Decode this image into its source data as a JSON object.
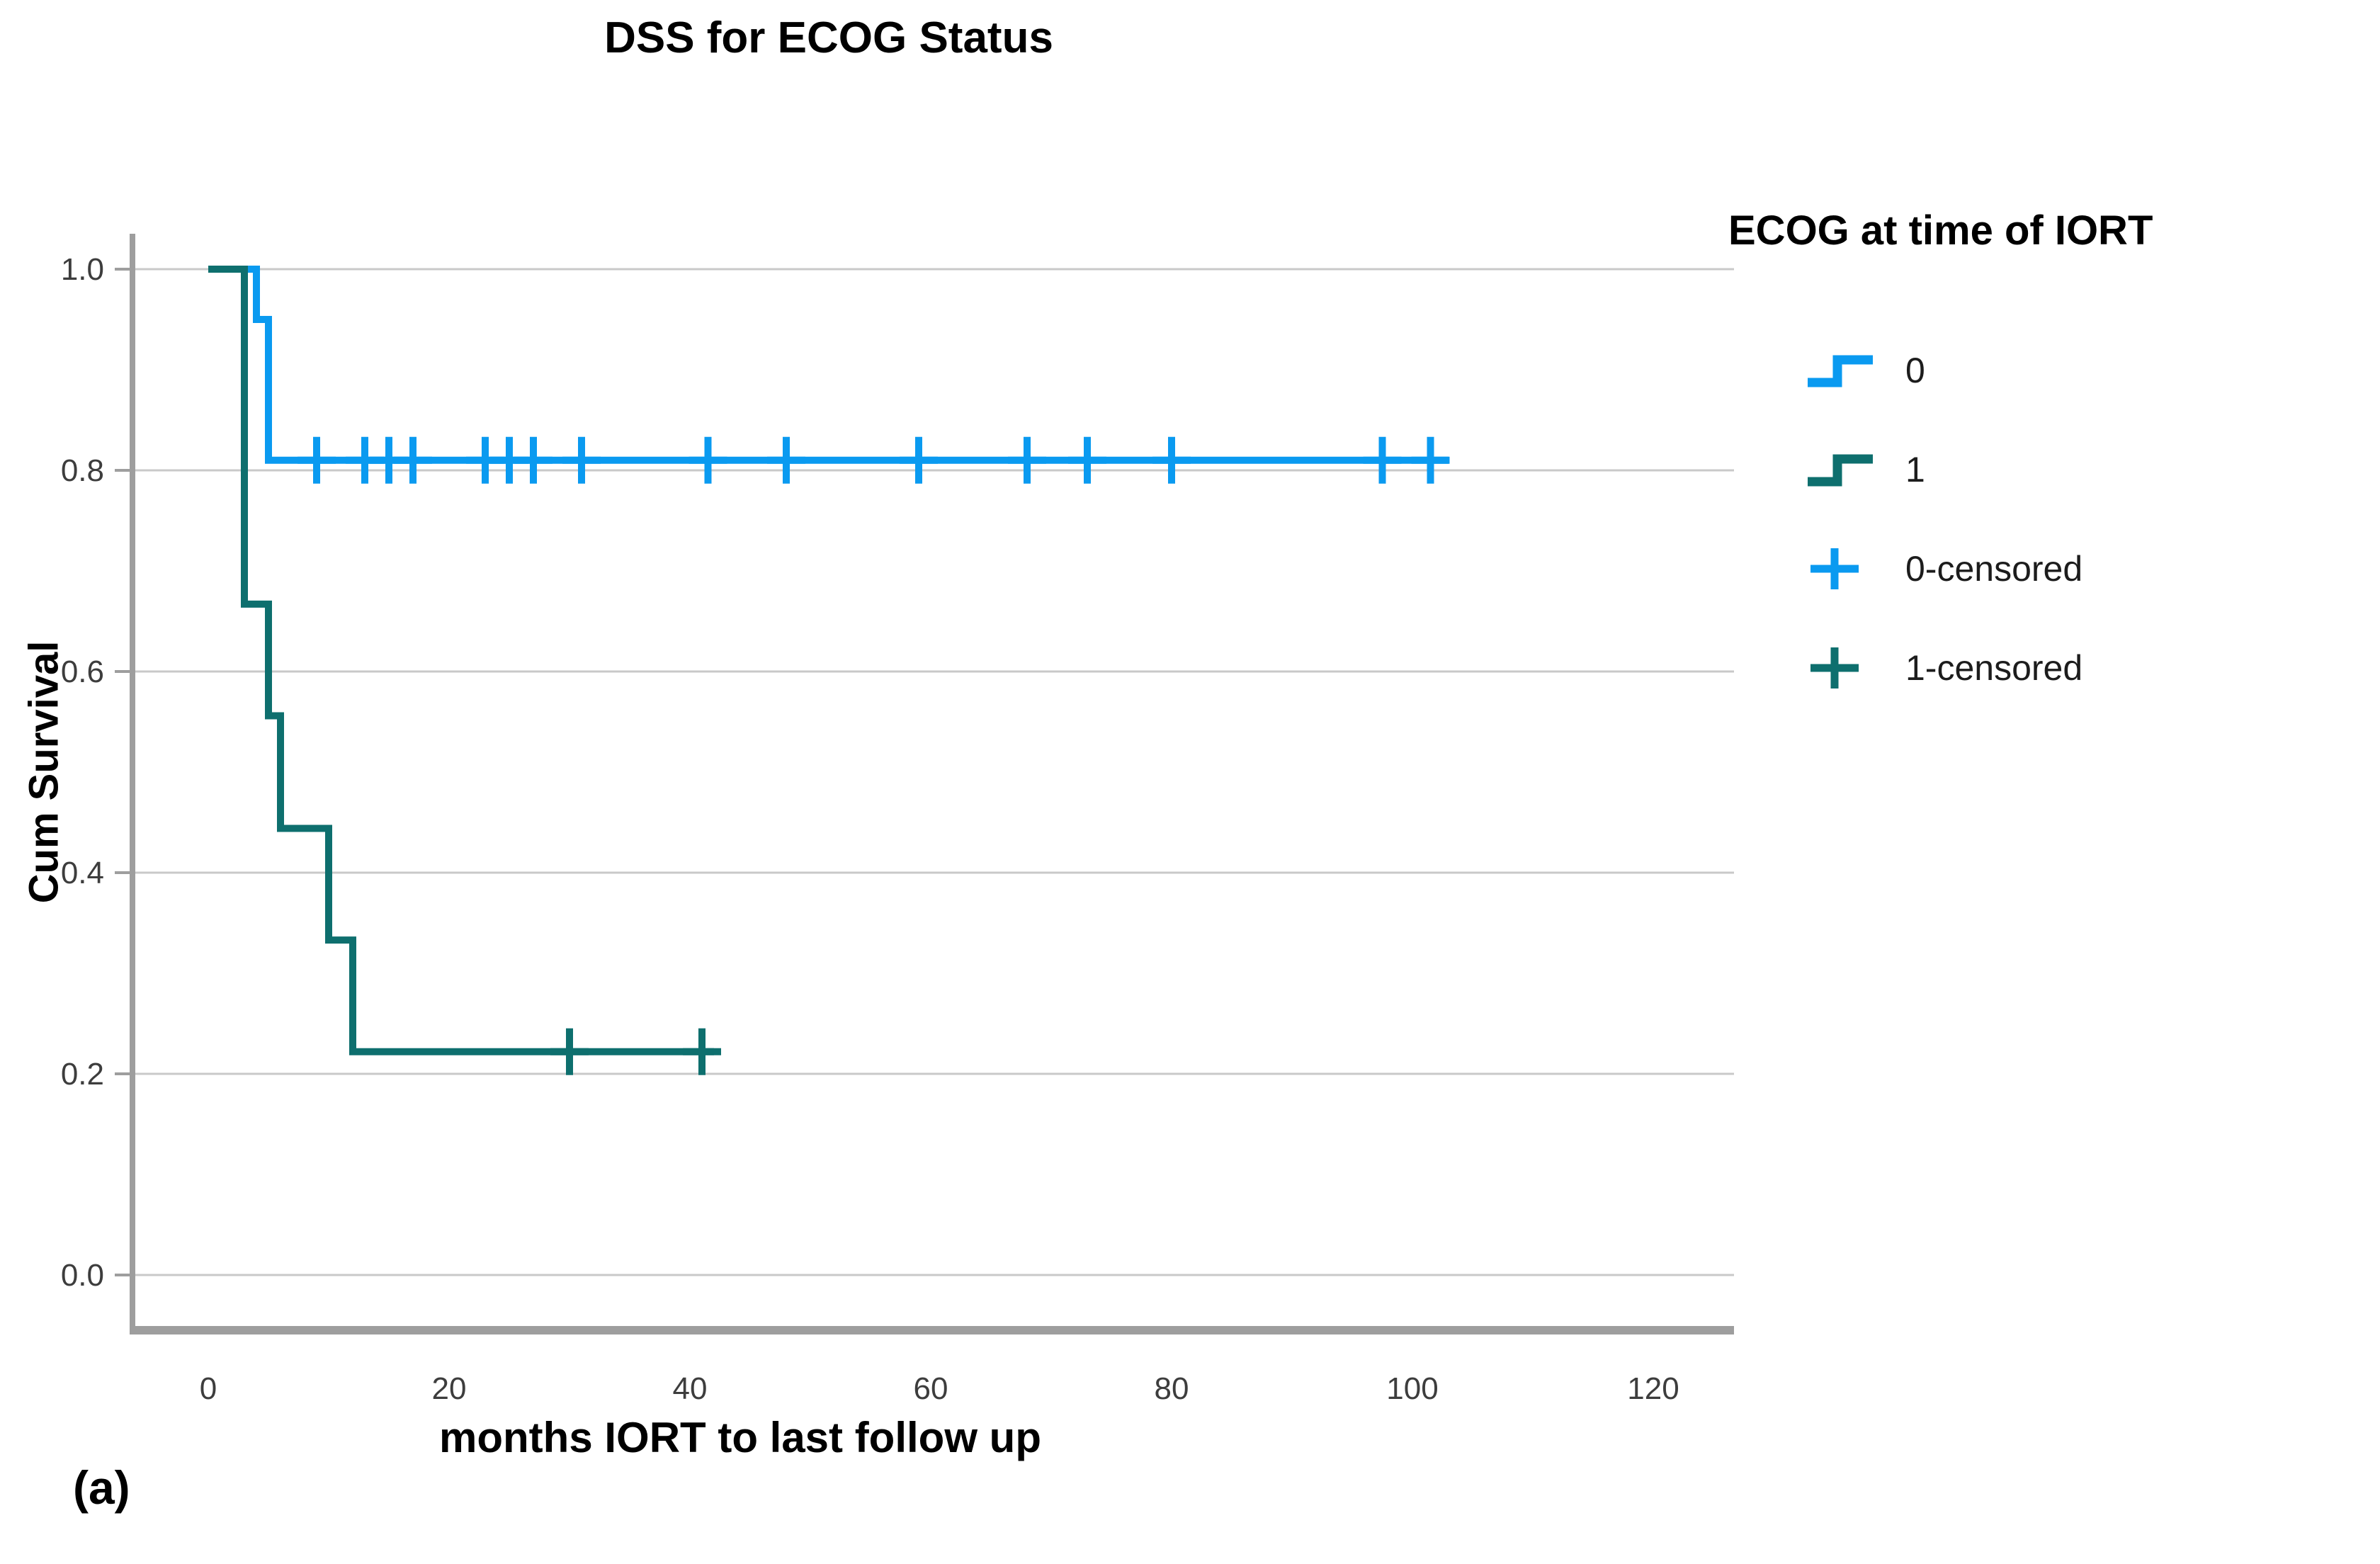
{
  "figure_label": "(a)",
  "chart_data": {
    "type": "line",
    "subtype": "kaplan-meier-step",
    "title": "DSS for ECOG Status",
    "xlabel": "months IORT to last follow up",
    "ylabel": "Cum Survival",
    "xlim": [
      0,
      126
    ],
    "ylim": [
      0.0,
      1.0
    ],
    "x_ticks": [
      0,
      20,
      40,
      60,
      80,
      100,
      120
    ],
    "x_tick_labels": [
      "0",
      "20",
      "40",
      "60",
      "80",
      "100",
      "120"
    ],
    "y_ticks": [
      0.0,
      0.2,
      0.4,
      0.6,
      0.8,
      1.0
    ],
    "y_tick_labels": [
      "0.0",
      "0.2",
      "0.4",
      "0.6",
      "0.8",
      "1.0"
    ],
    "grid": "horizontal",
    "legend_position": "right",
    "colors": {
      "ecog0_blue": "#0a9af0",
      "ecog1_teal": "#0e6f6e",
      "gridline": "#c9c9c9",
      "axis": "#9e9e9e",
      "tick_text": "#3d3d3d"
    },
    "series": [
      {
        "name": "0",
        "color": "#0a9af0",
        "steps": [
          [
            0,
            1.0
          ],
          [
            4,
            1.0
          ],
          [
            4,
            0.95
          ],
          [
            5,
            0.95
          ],
          [
            5,
            0.81
          ],
          [
            103,
            0.81
          ]
        ],
        "censored": [
          [
            9,
            0.81
          ],
          [
            13,
            0.81
          ],
          [
            15,
            0.81
          ],
          [
            17,
            0.81
          ],
          [
            23,
            0.81
          ],
          [
            25,
            0.81
          ],
          [
            27,
            0.81
          ],
          [
            31,
            0.81
          ],
          [
            41.5,
            0.81
          ],
          [
            48,
            0.81
          ],
          [
            59,
            0.81
          ],
          [
            68,
            0.81
          ],
          [
            73,
            0.81
          ],
          [
            80,
            0.81
          ],
          [
            97.5,
            0.81
          ],
          [
            101.5,
            0.81
          ]
        ]
      },
      {
        "name": "1",
        "color": "#0e6f6e",
        "steps": [
          [
            0,
            1.0
          ],
          [
            3,
            1.0
          ],
          [
            3,
            0.667
          ],
          [
            5,
            0.667
          ],
          [
            5,
            0.556
          ],
          [
            6,
            0.556
          ],
          [
            6,
            0.444
          ],
          [
            10,
            0.444
          ],
          [
            10,
            0.333
          ],
          [
            12,
            0.333
          ],
          [
            12,
            0.222
          ],
          [
            42,
            0.222
          ]
        ],
        "censored": [
          [
            30,
            0.222
          ],
          [
            41,
            0.222
          ]
        ]
      }
    ],
    "legend": {
      "title": "ECOG at time of IORT",
      "items": [
        {
          "label": "0",
          "glyph": "step",
          "color": "#0a9af0"
        },
        {
          "label": "1",
          "glyph": "step",
          "color": "#0e6f6e"
        },
        {
          "label": "0-censored",
          "glyph": "plus",
          "color": "#0a9af0"
        },
        {
          "label": "1-censored",
          "glyph": "plus",
          "color": "#0e6f6e"
        }
      ]
    }
  }
}
